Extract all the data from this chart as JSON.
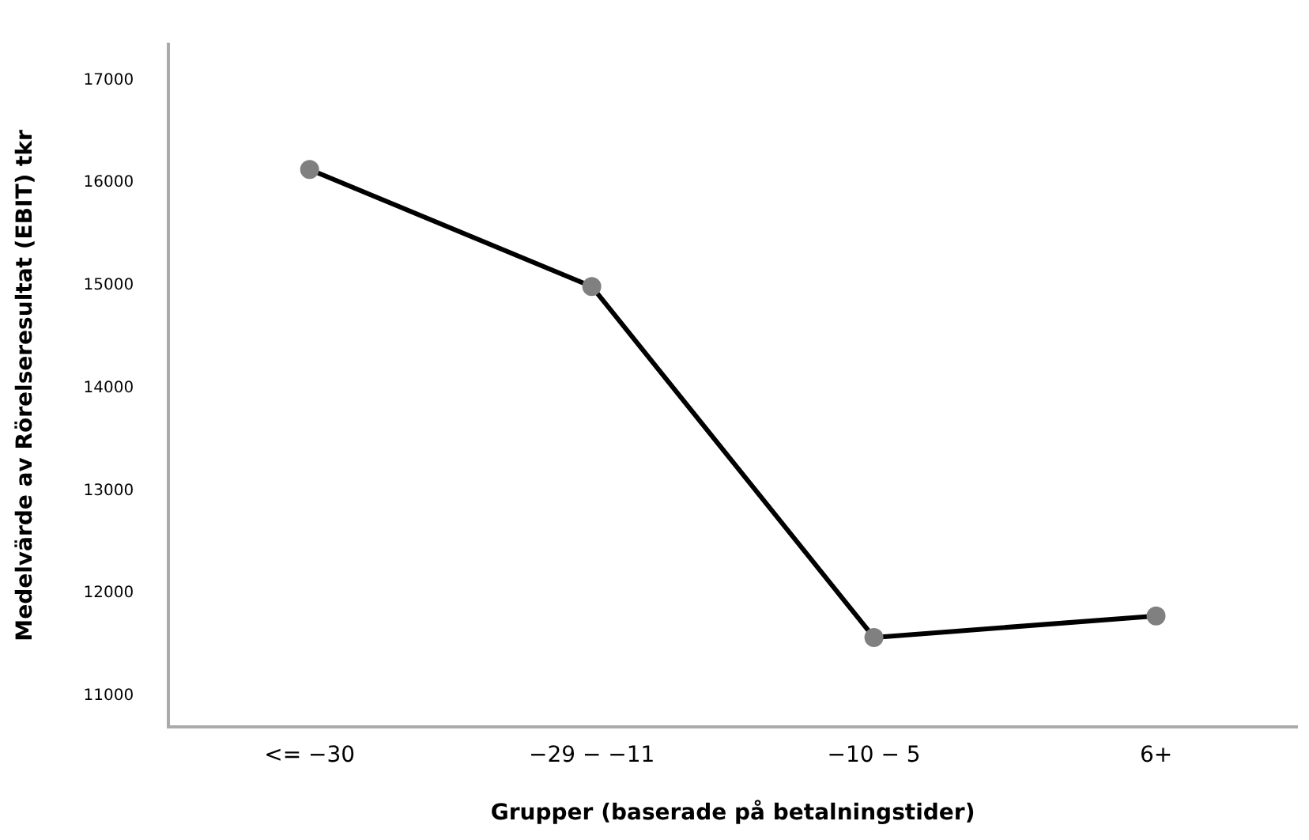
{
  "chart_data": {
    "type": "line",
    "xlabel": "Grupper (baserade på betalningstider)",
    "ylabel": "Medelvärde av Rörelseresultat (EBIT) tkr",
    "categories": [
      "<= −30",
      "−29 − −11",
      "−10 − 5",
      "6+"
    ],
    "series": [
      {
        "color": "#000000",
        "colors": [
          "#808080",
          "#808080",
          "#808080",
          "#808080"
        ],
        "values": [
          16130,
          14990,
          11570,
          11780
        ]
      }
    ],
    "ylim": [
      10700,
      17350
    ],
    "yticks": [
      11000,
      12000,
      13000,
      14000,
      15000,
      16000,
      17000
    ],
    "grid": false,
    "legend": false,
    "marker": "circle",
    "line_style": "solid"
  }
}
